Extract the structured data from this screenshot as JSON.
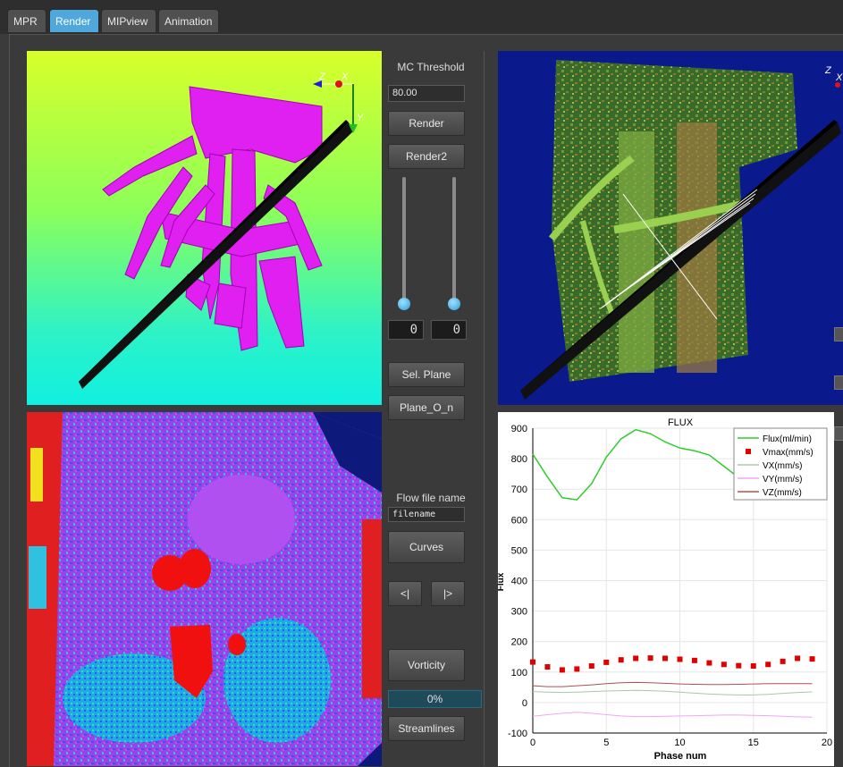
{
  "tabs": [
    {
      "label": "MPR",
      "active": false
    },
    {
      "label": "Render",
      "active": true
    },
    {
      "label": "MIPview",
      "active": false
    },
    {
      "label": "Animation",
      "active": false
    }
  ],
  "controls": {
    "mc_threshold_label": "MC Threshold",
    "mc_threshold_value": "80.00",
    "render_button": "Render",
    "render2_button": "Render2",
    "slider_left_value": "0",
    "slider_right_value": "0",
    "sel_plane_button": "Sel. Plane",
    "plane_on_button": "Plane_O_n",
    "flow_file_label": "Flow file name",
    "flow_file_value": "filename",
    "curves_button": "Curves",
    "prev_button": "<|",
    "next_button": "|>",
    "vorticity_button": "Vorticity",
    "progress_text": "0%",
    "progress_fraction": 0.0,
    "streamlines_button": "Streamlines"
  },
  "axes_labels": {
    "z": "Z",
    "x": "X",
    "y": "Y"
  },
  "colors": {
    "accent": "#4fa7dc",
    "magenta_vessel": "#e020f0",
    "volume_bg": "#0a1a8c",
    "flux": "#2ecc2e",
    "vmax": "#e00000",
    "vx": "#a8c8a8",
    "vy": "#f0a8f0",
    "vz": "#b05050"
  },
  "chart_data": {
    "type": "line",
    "title": "FLUX",
    "xlabel": "Phase num",
    "ylabel": "Flux",
    "xlim": [
      0,
      20
    ],
    "ylim": [
      -100,
      900
    ],
    "xticks": [
      0,
      5,
      10,
      15,
      20
    ],
    "yticks": [
      -100,
      0,
      100,
      200,
      300,
      400,
      500,
      600,
      700,
      800,
      900
    ],
    "grid": true,
    "legend": "top-right",
    "series": [
      {
        "name": "Flux(ml/min)",
        "style": "line",
        "color": "#2ecc2e",
        "x": [
          0,
          1,
          2,
          3,
          4,
          5,
          6,
          7,
          8,
          9,
          10,
          11,
          12,
          13,
          14,
          15,
          16,
          17,
          18,
          19
        ],
        "values": [
          815,
          740,
          672,
          665,
          718,
          805,
          865,
          895,
          882,
          855,
          835,
          826,
          812,
          775,
          738,
          720,
          735,
          785,
          835,
          850
        ]
      },
      {
        "name": "Vmax(mm/s)",
        "style": "dots",
        "color": "#e00000",
        "x": [
          0,
          1,
          2,
          3,
          4,
          5,
          6,
          7,
          8,
          9,
          10,
          11,
          12,
          13,
          14,
          15,
          16,
          17,
          18,
          19
        ],
        "values": [
          133,
          117,
          107,
          110,
          120,
          132,
          140,
          145,
          146,
          145,
          142,
          138,
          130,
          125,
          121,
          120,
          125,
          135,
          145,
          143
        ]
      },
      {
        "name": "VX(mm/s)",
        "style": "line",
        "color": "#a8c8a8",
        "x": [
          0,
          1,
          2,
          3,
          4,
          5,
          6,
          7,
          8,
          9,
          10,
          11,
          12,
          13,
          14,
          15,
          16,
          17,
          18,
          19
        ],
        "values": [
          36,
          34,
          33,
          34,
          36,
          38,
          39,
          40,
          39,
          37,
          34,
          31,
          28,
          26,
          25,
          25,
          27,
          30,
          33,
          35
        ]
      },
      {
        "name": "VY(mm/s)",
        "style": "line",
        "color": "#f0a8f0",
        "x": [
          0,
          1,
          2,
          3,
          4,
          5,
          6,
          7,
          8,
          9,
          10,
          11,
          12,
          13,
          14,
          15,
          16,
          17,
          18,
          19
        ],
        "values": [
          -45,
          -40,
          -35,
          -32,
          -35,
          -40,
          -44,
          -46,
          -46,
          -45,
          -44,
          -43,
          -42,
          -41,
          -41,
          -42,
          -43,
          -45,
          -47,
          -48
        ]
      },
      {
        "name": "VZ(mm/s)",
        "style": "line",
        "color": "#b05050",
        "x": [
          0,
          1,
          2,
          3,
          4,
          5,
          6,
          7,
          8,
          9,
          10,
          11,
          12,
          13,
          14,
          15,
          16,
          17,
          18,
          19
        ],
        "values": [
          55,
          52,
          52,
          55,
          58,
          62,
          65,
          66,
          65,
          63,
          61,
          60,
          59,
          59,
          60,
          61,
          62,
          62,
          62,
          62
        ]
      }
    ]
  }
}
